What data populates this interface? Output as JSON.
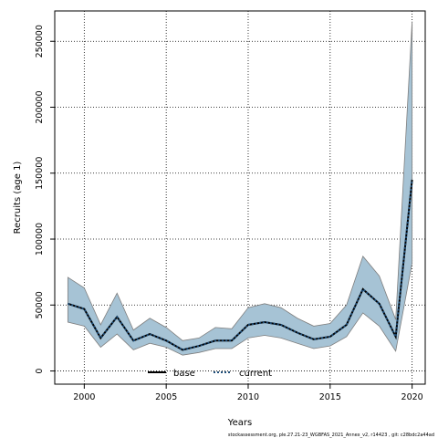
{
  "chart_data": {
    "type": "line",
    "xlabel": "Years",
    "ylabel": "Recruits (age 1)",
    "xlim": [
      1998.2,
      2020.8
    ],
    "ylim": [
      -10000,
      273000
    ],
    "x_ticks": [
      2000,
      2005,
      2010,
      2015,
      2020
    ],
    "x_tick_labels": [
      "2000",
      "2005",
      "2010",
      "2015",
      "2020"
    ],
    "y_ticks": [
      0,
      50000,
      100000,
      150000,
      200000,
      250000
    ],
    "y_tick_labels": [
      "0",
      "50000",
      "100000",
      "150000",
      "200000",
      "250000"
    ],
    "grid": true,
    "x": [
      1999,
      2000,
      2001,
      2002,
      2003,
      2004,
      2005,
      2006,
      2007,
      2008,
      2009,
      2010,
      2011,
      2012,
      2013,
      2014,
      2015,
      2016,
      2017,
      2018,
      2019,
      2020
    ],
    "series": [
      {
        "name": "base",
        "values": [
          51000,
          47000,
          25000,
          41000,
          23000,
          28000,
          23000,
          16000,
          19000,
          23000,
          23000,
          35000,
          37000,
          35000,
          29000,
          24000,
          26000,
          35000,
          62000,
          51000,
          26000,
          145000
        ],
        "color": "#000000",
        "style": "solid"
      },
      {
        "name": "current",
        "values": [
          51000,
          47000,
          25000,
          41000,
          23000,
          28000,
          23000,
          16000,
          19000,
          23000,
          23000,
          35000,
          37000,
          35000,
          29000,
          24000,
          26000,
          35000,
          62000,
          51000,
          26000,
          145000
        ],
        "color": "#1f4e79",
        "style": "dotted"
      }
    ],
    "band": {
      "lower": [
        37000,
        34000,
        18000,
        28000,
        16000,
        21000,
        18000,
        12000,
        14000,
        17000,
        17000,
        25000,
        27000,
        25000,
        21000,
        17000,
        19000,
        26000,
        44000,
        34000,
        15000,
        82000
      ],
      "upper": [
        71000,
        63000,
        35000,
        59000,
        31000,
        40000,
        33000,
        23000,
        25000,
        33000,
        32000,
        48000,
        51000,
        48000,
        40000,
        34000,
        36000,
        50000,
        87000,
        72000,
        39000,
        265000
      ],
      "color": "#a6c3d5"
    },
    "legend": {
      "placement": "bottom-center",
      "entries": [
        "base",
        "current"
      ]
    },
    "footnote": "stockassessment.org, ple.27.21-23_WGBFAS_2021_Annex_v2, r14423 , git: c28bdc2a44ad"
  }
}
